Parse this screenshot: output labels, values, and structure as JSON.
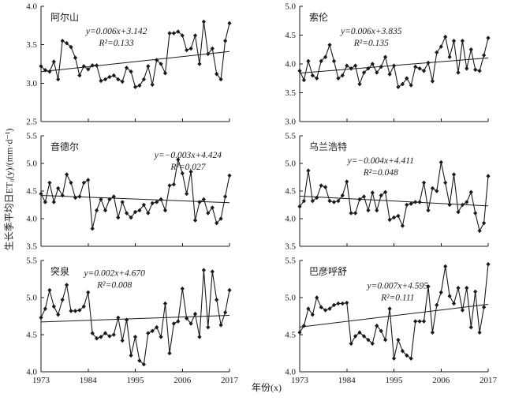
{
  "figure": {
    "ylabel": "生长季平均日ET₀(y)/(mm·d⁻¹)",
    "xlabel": "年份(x)",
    "ink_color": "#1a1a1a",
    "background_color": "#ffffff"
  },
  "chart_data": [
    {
      "type": "line",
      "title": "阿尔山",
      "equation": "y=0.006x+3.142",
      "r2_label": "R²=0.133",
      "slope": 0.006,
      "intercept": 3.142,
      "x_start": 1973,
      "x_end": 2017,
      "x_ticks": [
        "1973",
        "1984",
        "1995",
        "2006",
        "2017"
      ],
      "ylim": [
        2.5,
        4.0
      ],
      "y_ticks": [
        "2.5",
        "3.0",
        "3.5",
        "4.0"
      ],
      "eq_pos": [
        0.4,
        0.24
      ],
      "values": [
        3.22,
        3.17,
        3.15,
        3.28,
        3.05,
        3.55,
        3.52,
        3.47,
        3.33,
        3.1,
        3.22,
        3.18,
        3.23,
        3.23,
        3.03,
        3.05,
        3.08,
        3.1,
        3.05,
        3.02,
        3.2,
        3.15,
        2.95,
        2.97,
        3.05,
        3.22,
        2.98,
        3.3,
        3.25,
        3.13,
        3.65,
        3.65,
        3.67,
        3.62,
        3.43,
        3.45,
        3.62,
        3.25,
        3.8,
        3.38,
        3.45,
        3.12,
        3.05,
        3.55,
        3.78
      ]
    },
    {
      "type": "line",
      "title": "索伦",
      "equation": "y=0.006x+3.835",
      "r2_label": "R²=0.135",
      "slope": 0.006,
      "intercept": 3.835,
      "x_start": 1973,
      "x_end": 2017,
      "x_ticks": [
        "1973",
        "1984",
        "1995",
        "2006",
        "2017"
      ],
      "ylim": [
        3.0,
        5.0
      ],
      "y_ticks": [
        "3.0",
        "3.5",
        "4.0",
        "4.5",
        "5.0"
      ],
      "eq_pos": [
        0.38,
        0.24
      ],
      "values": [
        3.88,
        3.72,
        4.05,
        3.8,
        3.75,
        4.05,
        4.12,
        4.33,
        4.05,
        3.75,
        3.8,
        3.97,
        3.92,
        3.97,
        3.65,
        3.85,
        3.92,
        4.0,
        3.85,
        3.95,
        4.12,
        3.82,
        3.97,
        3.6,
        3.65,
        3.75,
        3.63,
        3.95,
        3.92,
        3.88,
        4.02,
        3.7,
        4.2,
        4.3,
        4.47,
        4.12,
        4.4,
        3.85,
        4.4,
        3.92,
        4.25,
        3.9,
        3.88,
        4.15,
        4.45
      ]
    },
    {
      "type": "line",
      "title": "音德尔",
      "equation": "y=−0.003x+4.424",
      "r2_label": "R²=0.027",
      "slope": -0.003,
      "intercept": 4.424,
      "x_start": 1973,
      "x_end": 2017,
      "x_ticks": [
        "1973",
        "1984",
        "1995",
        "2006",
        "2017"
      ],
      "ylim": [
        3.5,
        5.5
      ],
      "y_ticks": [
        "3.5",
        "4.0",
        "4.5",
        "5.0",
        "5.5"
      ],
      "eq_pos": [
        0.78,
        0.2
      ],
      "values": [
        4.45,
        4.3,
        4.65,
        4.3,
        4.55,
        4.42,
        4.8,
        4.65,
        4.38,
        4.4,
        4.65,
        4.7,
        3.82,
        4.15,
        4.35,
        4.15,
        4.35,
        4.4,
        4.02,
        4.3,
        4.1,
        4.02,
        4.12,
        4.15,
        4.25,
        4.1,
        4.28,
        4.3,
        4.35,
        4.15,
        4.6,
        4.62,
        5.07,
        4.82,
        4.45,
        4.85,
        3.97,
        4.3,
        4.35,
        4.1,
        4.2,
        3.92,
        4.0,
        4.4,
        4.78
      ]
    },
    {
      "type": "line",
      "title": "乌兰浩特",
      "equation": "y=−0.004x+4.411",
      "r2_label": "R²=0.048",
      "slope": -0.004,
      "intercept": 4.411,
      "x_start": 1973,
      "x_end": 2017,
      "x_ticks": [
        "1973",
        "1984",
        "1995",
        "2006",
        "2017"
      ],
      "ylim": [
        3.5,
        5.5
      ],
      "y_ticks": [
        "3.5",
        "4.0",
        "4.5",
        "5.0",
        "5.5"
      ],
      "eq_pos": [
        0.43,
        0.25
      ],
      "values": [
        4.22,
        4.32,
        4.87,
        4.32,
        4.38,
        4.6,
        4.57,
        4.32,
        4.3,
        4.32,
        4.42,
        4.67,
        4.1,
        4.1,
        4.35,
        4.4,
        4.15,
        4.47,
        4.15,
        4.42,
        4.48,
        3.98,
        4.02,
        4.05,
        3.87,
        4.25,
        4.27,
        4.3,
        4.3,
        4.65,
        4.15,
        4.55,
        4.5,
        5.02,
        4.65,
        4.25,
        4.8,
        4.12,
        4.25,
        4.3,
        4.48,
        4.1,
        3.78,
        3.92,
        4.77
      ]
    },
    {
      "type": "line",
      "title": "突泉",
      "equation": "y=0.002x+4.670",
      "r2_label": "R²=0.008",
      "slope": 0.002,
      "intercept": 4.67,
      "x_start": 1973,
      "x_end": 2017,
      "x_ticks": [
        "1973",
        "1984",
        "1995",
        "2006",
        "2017"
      ],
      "ylim": [
        4.0,
        5.5
      ],
      "y_ticks": [
        "4.0",
        "4.5",
        "5.0",
        "5.5"
      ],
      "eq_pos": [
        0.39,
        0.14
      ],
      "values": [
        4.73,
        4.85,
        5.1,
        4.88,
        4.77,
        4.97,
        5.17,
        4.82,
        4.82,
        4.83,
        4.88,
        5.07,
        4.52,
        4.45,
        4.47,
        4.52,
        4.48,
        4.5,
        4.73,
        4.42,
        4.7,
        4.22,
        4.47,
        4.15,
        4.1,
        4.52,
        4.55,
        4.6,
        4.47,
        4.92,
        4.25,
        4.65,
        4.68,
        5.12,
        4.72,
        4.65,
        4.78,
        4.47,
        5.37,
        4.6,
        5.35,
        4.97,
        4.63,
        4.8,
        5.1
      ]
    },
    {
      "type": "line",
      "title": "巴彦呼舒",
      "equation": "y=0.007x+4.595",
      "r2_label": "R²=0.111",
      "slope": 0.007,
      "intercept": 4.595,
      "x_start": 1973,
      "x_end": 2017,
      "x_ticks": [
        "1973",
        "1984",
        "1995",
        "2006",
        "2017"
      ],
      "ylim": [
        4.0,
        5.5
      ],
      "y_ticks": [
        "4.0",
        "4.5",
        "5.0",
        "5.5"
      ],
      "eq_pos": [
        0.52,
        0.25
      ],
      "values": [
        4.53,
        4.62,
        4.85,
        4.77,
        5.0,
        4.87,
        4.83,
        4.85,
        4.9,
        4.92,
        4.92,
        4.93,
        4.38,
        4.48,
        4.53,
        4.48,
        4.43,
        4.38,
        4.62,
        4.55,
        4.43,
        4.85,
        4.18,
        4.43,
        4.28,
        4.22,
        4.18,
        4.68,
        4.68,
        4.68,
        5.15,
        4.53,
        4.9,
        5.07,
        5.42,
        5.02,
        4.92,
        5.13,
        4.83,
        5.13,
        4.6,
        5.08,
        4.53,
        4.87,
        5.45
      ]
    }
  ]
}
